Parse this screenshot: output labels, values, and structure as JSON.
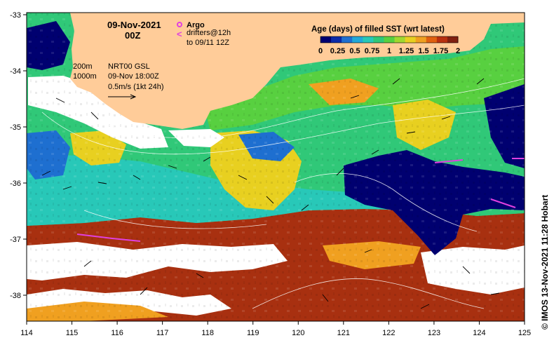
{
  "title": {
    "date": "09-Nov-2021",
    "time": "00Z"
  },
  "legend": {
    "argo_label": "Argo",
    "drifters_label": "drifters@12h",
    "drifters_to": "to 09/11 12Z",
    "argo_color": "#e040e0",
    "drifter_color": "#e040e0"
  },
  "isobaths": {
    "line1": "200m",
    "line2": "1000m"
  },
  "currents": {
    "product": "NRT00 GSL",
    "valid": "09-Nov 18:00Z",
    "scale": "0.5m/s (1kt 24h)"
  },
  "colorbar": {
    "title": "Age (days) of filled SST (wrt latest)",
    "tick_labels": [
      "0",
      "0.25",
      "0.5",
      "0.75",
      "1",
      "1.25",
      "1.5",
      "1.75",
      "2"
    ],
    "colors": [
      "#000070",
      "#0a2aa8",
      "#1e6fd0",
      "#22a8d8",
      "#28c8b8",
      "#30c878",
      "#58d040",
      "#a0d830",
      "#e8d020",
      "#f0a020",
      "#e06010",
      "#b83010",
      "#802010"
    ]
  },
  "axes": {
    "x_ticks": [
      "114",
      "115",
      "116",
      "117",
      "118",
      "119",
      "120",
      "121",
      "122",
      "123",
      "124",
      "125"
    ],
    "y_ticks": [
      "-33",
      "-34",
      "-35",
      "-36",
      "-37",
      "-38"
    ]
  },
  "credit": "© IMOS 13-Nov-2021 11:28 Hobart",
  "colors": {
    "land": "#ffcc99",
    "missing": "#ffffff",
    "age_0": "#000070",
    "age_low": "#1e6fd0",
    "age_mid_cyan": "#28c8b8",
    "age_mid_green": "#30c878",
    "age_1": "#58d040",
    "age_hi_yellow": "#e8d020",
    "age_hi_orange": "#f0a020",
    "age_2": "#a83010"
  }
}
